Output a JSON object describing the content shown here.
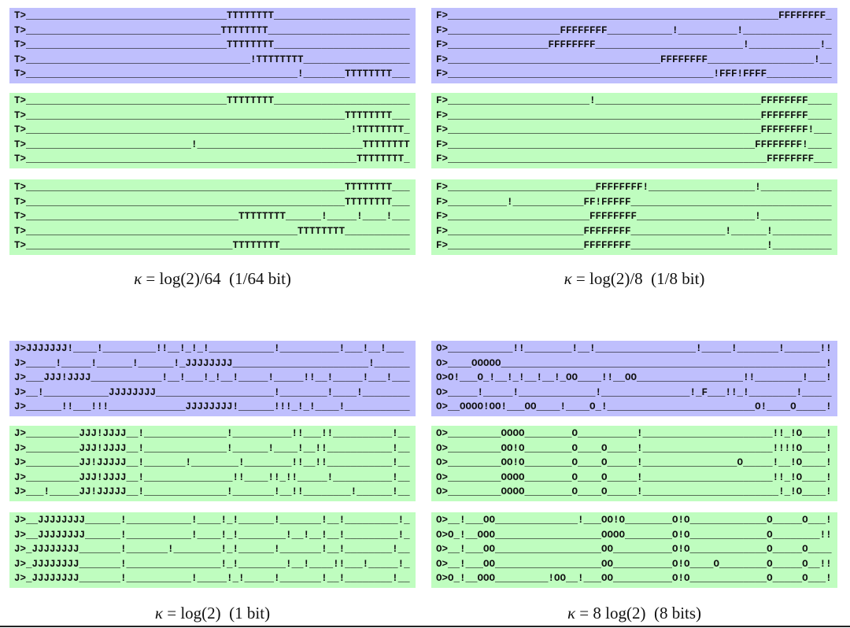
{
  "colors": {
    "blue": "#bfbffd",
    "green": "#bffdbf"
  },
  "panels": [
    {
      "caption": {
        "symbol": "κ",
        "text": " = log(2)/64  (1/64 bit)"
      },
      "blocks": [
        {
          "color": "blue",
          "lines": [
            "T>__________________________________TTTTTTTT_______________________",
            "T>_________________________________TTTTTTTT________________________",
            "T>__________________________________TTTTTTTT_______________________",
            "T>______________________________________!TTTTTTTT__________________",
            "T>______________________________________________!_______TTTTTTTT___"
          ]
        },
        {
          "color": "green",
          "lines": [
            "T>__________________________________TTTTTTTT_______________________",
            "T>______________________________________________________TTTTTTTT___",
            "T>_______________________________________________________!TTTTTTTT_",
            "T>____________________________!____________________________TTTTTTTT",
            "T>________________________________________________________TTTTTTTT_"
          ]
        },
        {
          "color": "green",
          "lines": [
            "T>______________________________________________________TTTTTTTT___",
            "T>______________________________________________________TTTTTTTT___",
            "T>____________________________________TTTTTTTT______!_____!____!___",
            "T>______________________________________________TTTTTTTT___________",
            "T>___________________________________TTTTTTTT______________________"
          ]
        }
      ]
    },
    {
      "caption": {
        "symbol": "κ",
        "text": " = log(2)/8  (1/8 bit)"
      },
      "blocks": [
        {
          "color": "blue",
          "lines": [
            "F>________________________________________________________FFFFFFFF_",
            "F>___________________FFFFFFFF___________!__________!_______________",
            "F>_________________FFFFFFFF_________________________!____________!_",
            "F>____________________________________FFFFFFFF__________________!__",
            "F>_____________________________________________!FFF!FFFF___________"
          ]
        },
        {
          "color": "green",
          "lines": [
            "F>________________________!____________________________FFFFFFFF____",
            "F>_____________________________________________________FFFFFFFF____",
            "F>_____________________________________________________FFFFFFFF!___",
            "F>____________________________________________________FFFFFFFF!____",
            "F>______________________________________________________FFFFFFFF___"
          ]
        },
        {
          "color": "green",
          "lines": [
            "F>_________________________FFFFFFFF!__________________!____________",
            "F>__________!____________FF!FFFFF__________________________________",
            "F>________________________FFFFFFFF____________________!____________",
            "F>_______________________FFFFFFFF________________!______!__________",
            "F>_______________________FFFFFFFF_______________________!__________"
          ]
        }
      ]
    },
    {
      "caption": {
        "symbol": "κ",
        "text": " = log(2)  (1 bit)"
      },
      "blocks": [
        {
          "color": "blue",
          "lines": [
            "J>JJJJJJJ!____!_________!!__!_!_!___________!__________!___!__!___",
            "J>_____!_____!______!______!_JJJJJJJJ_______________________!______",
            "J>___JJJ!JJJJ____________!__!___!_!__!_____!_____!!__!_____!___!___",
            "J>__!___________JJJJJJJJ____________________!________!____!________",
            "J>______!!___!!!_____________JJJJJJJJ!______!!!_!_!____!___________"
          ]
        },
        {
          "color": "green",
          "lines": [
            "J>_________JJJ!JJJJ__!______________!__________!!___!!__________!__",
            "J>_________JJJ!JJJJ__!______________!______!____!__!!___________!__",
            "J>_________JJ!JJJJJ__!_______!________!________!!__!!___________!__",
            "J>_________JJJ!JJJJ__!_______________!!____!!_!!_____!__________!__",
            "J>___!_____JJ!JJJJJ__!______________!_______!__!!________!______!__"
          ]
        },
        {
          "color": "green",
          "lines": [
            "J>__JJJJJJJJ______!___________!____!_!______!_______!__!_________!_",
            "J>__JJJJJJJJ______!___________!____!_!________!__!__!__!_________!_",
            "J>_JJJJJJJJ_______!_______!________!_!______!_______!__!________!__",
            "J>_JJJJJJJJ_______!________________!_!________!__!____!!___!_____!_",
            "J>_JJJJJJJJ_______!___________!_____!_!_____!_______!__!________!__"
          ]
        }
      ]
    },
    {
      "caption": {
        "symbol": "κ",
        "text": " = 8 log(2)  (8 bits)"
      },
      "blocks": [
        {
          "color": "blue",
          "lines": [
            "O>___________!!________!__!_________________!_____!_______!______!!",
            "O>____OOOOO_______________________________________________________!",
            "O>O!___O_!__!_!__!__!_OO____!!__OO__________________!!________!___!",
            "O>_____!_____!_____________!_______________!_F___!!_!________!_____",
            "O>__OOOO!OO!___OO____!____O_!_________________________O!____O_____!"
          ]
        },
        {
          "color": "green",
          "lines": [
            "O>_________OOOO________O__________!______________________!!_!O____!",
            "O>_________OO!O________O____O_____!______________________!!!!O____!",
            "O>_________OO!O________O____O_____!________________O_____!__!O____!",
            "O>_________OOOO________O____O_____!______________________!!_!O____!",
            "O>_________OOOO________O____O_____!_______________________!_!O____!"
          ]
        },
        {
          "color": "green",
          "lines": [
            "O>__!___OO______________!___OO!O________O!O_____________O_____O___!",
            "O>O_!__OOO__________________OOOO________O!O_____________O________!!",
            "O>__!___OO__________________OO__________O!O_____________O_____O____",
            "O>__!___OO__________________OO__________O!O____O________O_____O__!!",
            "O>O_!__OOO_________!OO__!___OO__________O!O_____________O_____O___!"
          ]
        }
      ]
    }
  ]
}
